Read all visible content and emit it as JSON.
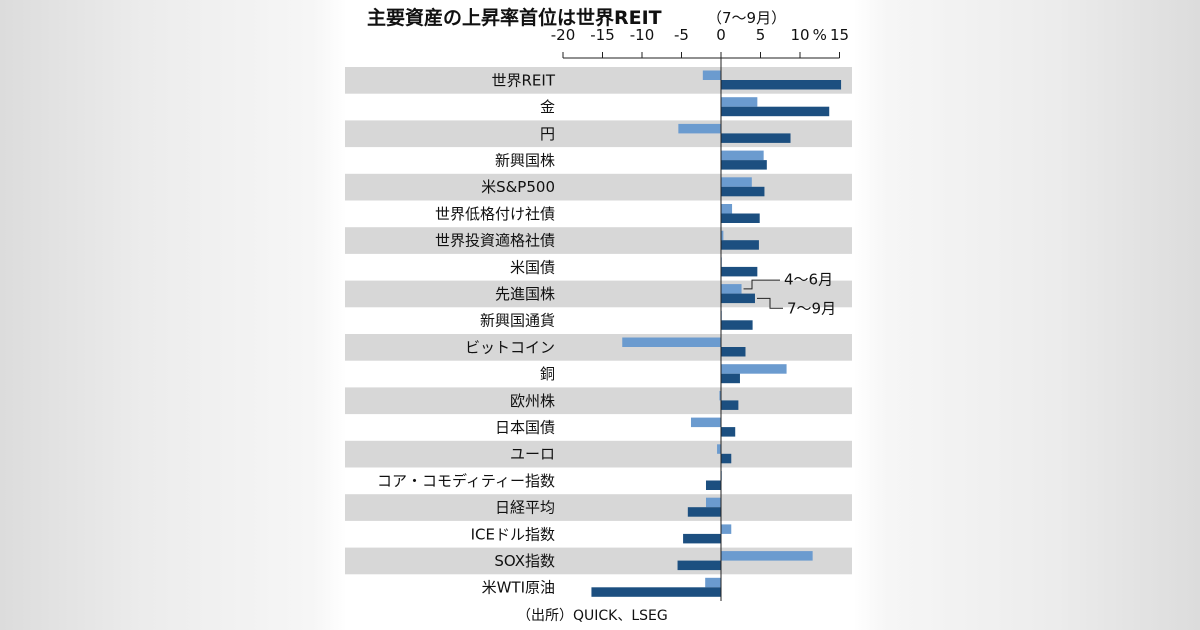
{
  "chart_data": {
    "type": "bar",
    "orientation": "horizontal",
    "title": "主要資産の上昇率首位は世界REIT",
    "subtitle": "（7～9月）",
    "unit_label": "%",
    "xlim": [
      -20,
      15
    ],
    "ticks": [
      "-20",
      "-15",
      "-10",
      "-5",
      "0",
      "5",
      "10",
      "15"
    ],
    "categories": [
      "世界REIT",
      "金",
      "円",
      "新興国株",
      "米S&P500",
      "世界低格付け社債",
      "世界投資適格社債",
      "米国債",
      "先進国株",
      "新興国通貨",
      "ビットコイン",
      "銅",
      "欧州株",
      "日本国債",
      "ユーロ",
      "コア・コモディティー指数",
      "日経平均",
      "ICEドル指数",
      "SOX指数",
      "米WTI原油"
    ],
    "series": [
      {
        "name": "4～6月",
        "color": "#6b9bcf",
        "values": [
          -2.3,
          4.6,
          -5.4,
          5.4,
          3.9,
          1.4,
          0.3,
          0.1,
          2.6,
          0.0,
          -12.5,
          8.3,
          -0.2,
          -3.8,
          -0.5,
          0.0,
          -1.9,
          1.3,
          11.6,
          -2.0
        ]
      },
      {
        "name": "7～9月",
        "color": "#1c4f80",
        "values": [
          15.2,
          13.7,
          8.8,
          5.8,
          5.5,
          4.9,
          4.8,
          4.6,
          4.3,
          4.0,
          3.1,
          2.4,
          2.2,
          1.8,
          1.3,
          -1.9,
          -4.2,
          -4.8,
          -5.5,
          -16.4
        ]
      }
    ],
    "source": "（出所）QUICK、LSEG"
  }
}
